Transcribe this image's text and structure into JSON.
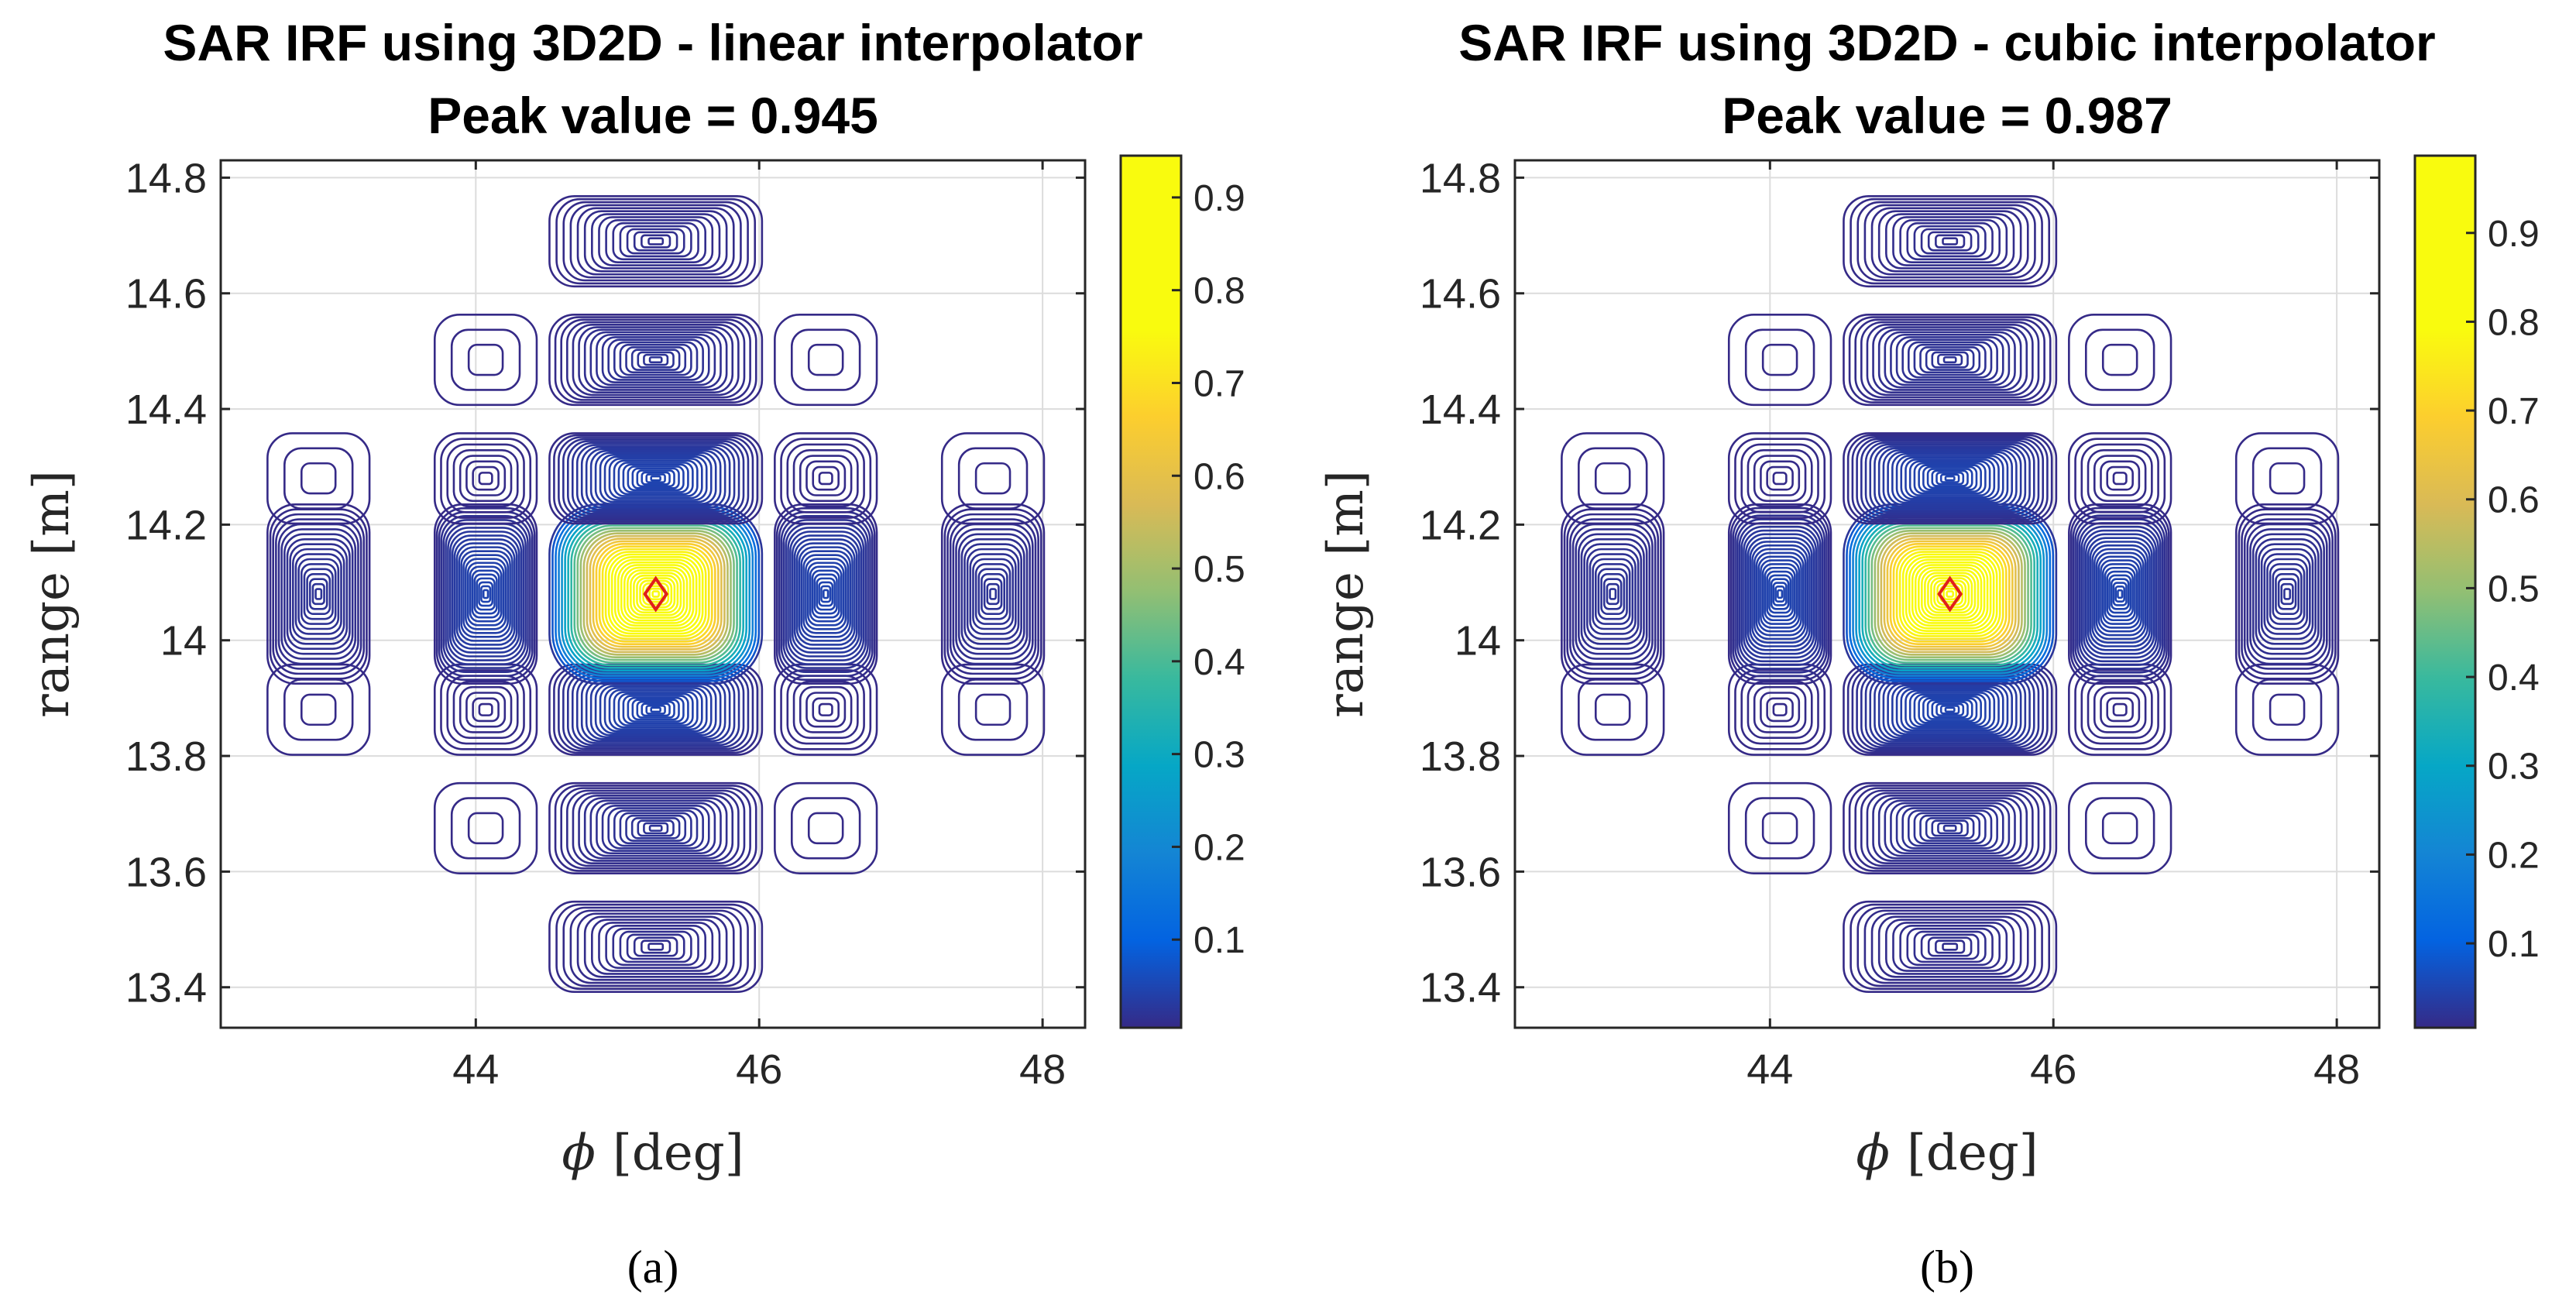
{
  "chart_data": [
    {
      "type": "contour",
      "id": "a",
      "title": "SAR IRF using 3D2D - linear interpolator",
      "peak_label": "Peak value = 0.945",
      "peak_value": 0.945,
      "peak_location": [
        45.27,
        14.08
      ],
      "xlabel_sym": "ϕ",
      "xlabel_unit": "[deg]",
      "ylabel": "range [m]",
      "xlim": [
        42.2,
        48.3
      ],
      "ylim": [
        13.33,
        14.83
      ],
      "xticks": [
        44,
        46,
        48
      ],
      "xtick_labels": [
        "44",
        "46",
        "48"
      ],
      "yticks": [
        13.4,
        13.6,
        13.8,
        14,
        14.2,
        14.4,
        14.6,
        14.8
      ],
      "ytick_labels": [
        "13.4",
        "13.6",
        "13.8",
        "14",
        "14.2",
        "14.4",
        "14.6",
        "14.8"
      ],
      "colorbar": {
        "ticks": [
          0.1,
          0.2,
          0.3,
          0.4,
          0.5,
          0.6,
          0.7,
          0.8,
          0.9
        ],
        "tick_labels": [
          "0.1",
          "0.2",
          "0.3",
          "0.4",
          "0.5",
          "0.6",
          "0.7",
          "0.8",
          "0.9"
        ],
        "range": [
          0.005,
          0.945
        ]
      },
      "interp": "linear",
      "grid": true,
      "subfig_label": "(a)",
      "subfig_letter": "a"
    },
    {
      "type": "contour",
      "id": "b",
      "title": "SAR IRF using 3D2D - cubic interpolator",
      "peak_label": "Peak value = 0.987",
      "peak_value": 0.987,
      "peak_location": [
        45.27,
        14.08
      ],
      "xlabel_sym": "ϕ",
      "xlabel_unit": "[deg]",
      "ylabel": "range [m]",
      "xlim": [
        42.2,
        48.3
      ],
      "ylim": [
        13.33,
        14.83
      ],
      "xticks": [
        44,
        46,
        48
      ],
      "xtick_labels": [
        "44",
        "46",
        "48"
      ],
      "yticks": [
        13.4,
        13.6,
        13.8,
        14,
        14.2,
        14.4,
        14.6,
        14.8
      ],
      "ytick_labels": [
        "13.4",
        "13.6",
        "13.8",
        "14",
        "14.2",
        "14.4",
        "14.6",
        "14.8"
      ],
      "colorbar": {
        "ticks": [
          0.1,
          0.2,
          0.3,
          0.4,
          0.5,
          0.6,
          0.7,
          0.8,
          0.9
        ],
        "tick_labels": [
          "0.1",
          "0.2",
          "0.3",
          "0.4",
          "0.5",
          "0.6",
          "0.7",
          "0.8",
          "0.9"
        ],
        "range": [
          0.005,
          0.987
        ]
      },
      "interp": "cubic",
      "grid": true,
      "subfig_label": "(b)",
      "subfig_letter": "b"
    }
  ],
  "colors": {
    "grid": "#dcdcdc",
    "axis": "#262626",
    "marker": "#e0201b",
    "background": "#ffffff"
  },
  "colormap": "parula"
}
